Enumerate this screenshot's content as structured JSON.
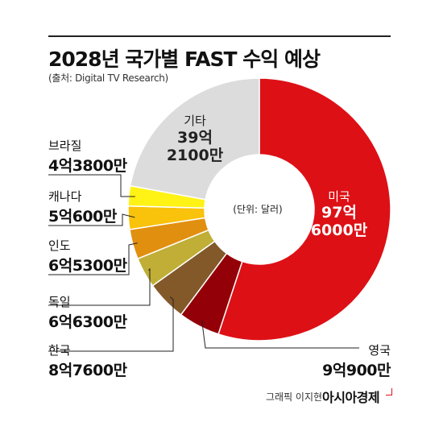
{
  "title": "2028년 국가별 FAST 수익 예상",
  "source": "(출처: Digital TV Research)",
  "center_note": "(단위: 달러)",
  "credit": "그래픽 이지현",
  "brand": "아시아경제",
  "chart_data": {
    "type": "pie",
    "style": "donut",
    "unit": "달러",
    "slices": [
      {
        "name": "미국",
        "label": "97억 6000만",
        "value": 9760000000,
        "color": "#dd1016"
      },
      {
        "name": "영국",
        "label": "9억900만",
        "value": 909000000,
        "color": "#930007"
      },
      {
        "name": "한국",
        "label": "8억7600만",
        "value": 876000000,
        "color": "#83592a"
      },
      {
        "name": "독일",
        "label": "6억6300만",
        "value": 663000000,
        "color": "#c0ae36"
      },
      {
        "name": "인도",
        "label": "6억5300만",
        "value": 653000000,
        "color": "#e18f0f"
      },
      {
        "name": "캐나다",
        "label": "5억600만",
        "value": 506000000,
        "color": "#f9c20b"
      },
      {
        "name": "브라질",
        "label": "4억3800만",
        "value": 438000000,
        "color": "#fff215"
      },
      {
        "name": "기타",
        "label": "39억 2100만",
        "value": 3921000000,
        "color": "#dcdcdc"
      }
    ]
  }
}
